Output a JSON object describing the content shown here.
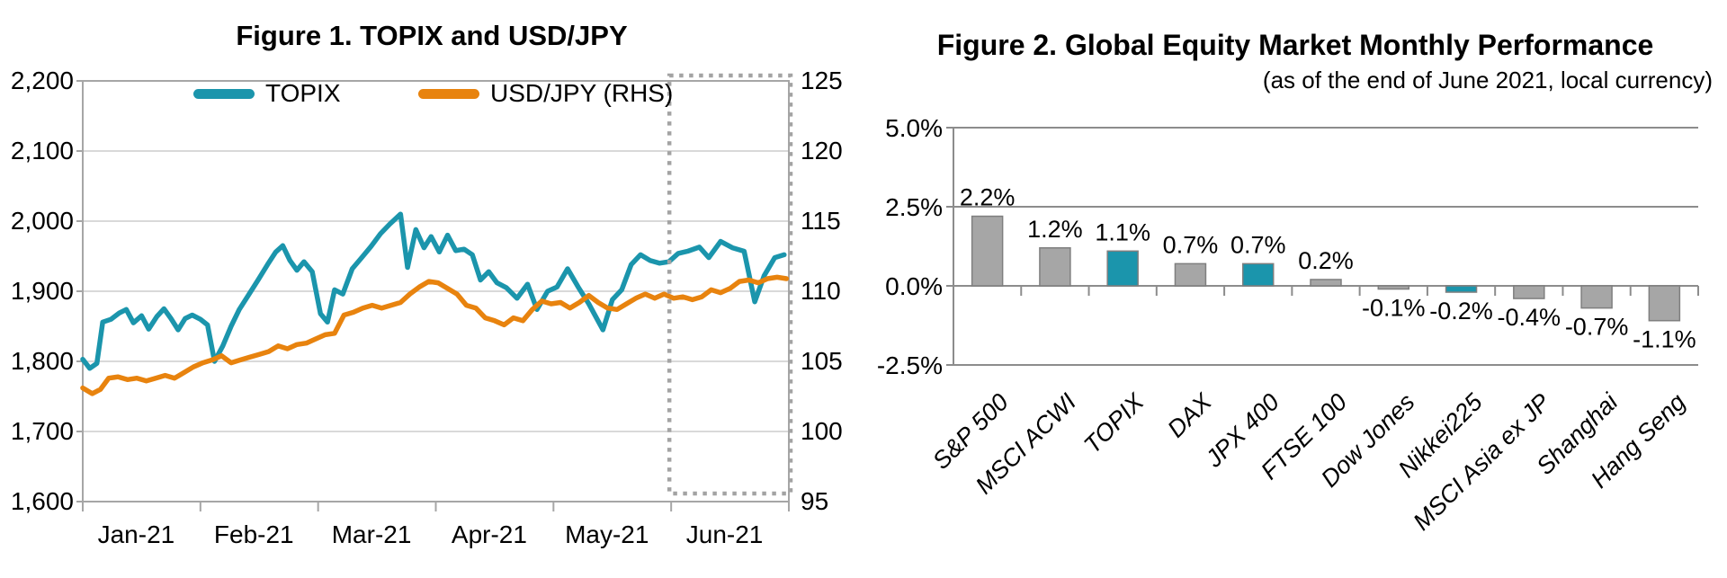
{
  "chart_data": [
    {
      "type": "line",
      "title": "Figure 1. TOPIX and USD/JPY",
      "x_tick_labels": [
        "Jan-21",
        "Feb-21",
        "Mar-21",
        "Apr-21",
        "May-21",
        "Jun-21"
      ],
      "x_unit": "months since Jan-21 start (0 to 6)",
      "left_axis": {
        "min": 1600,
        "max": 2200,
        "tick_labels": [
          "2,200",
          "2,100",
          "2,000",
          "1,900",
          "1,800",
          "1,700",
          "1,600"
        ]
      },
      "right_axis": {
        "min": 95,
        "max": 125,
        "tick_labels": [
          "125",
          "120",
          "115",
          "110",
          "105",
          "100",
          "95"
        ]
      },
      "grid": "horizontal",
      "legend_position": "top-inside",
      "annotation_box": {
        "meaning": "dotted highlight over June 2021",
        "x_from": 5.0,
        "x_to": 6.0
      },
      "series": [
        {
          "name": "TOPIX",
          "axis": "left",
          "color": "#1B95AC",
          "points": [
            [
              0,
              1803
            ],
            [
              0.06,
              1790
            ],
            [
              0.12,
              1797
            ],
            [
              0.17,
              1856
            ],
            [
              0.24,
              1860
            ],
            [
              0.31,
              1869
            ],
            [
              0.37,
              1874
            ],
            [
              0.43,
              1855
            ],
            [
              0.5,
              1865
            ],
            [
              0.56,
              1846
            ],
            [
              0.63,
              1864
            ],
            [
              0.69,
              1875
            ],
            [
              0.75,
              1861
            ],
            [
              0.81,
              1845
            ],
            [
              0.87,
              1861
            ],
            [
              0.93,
              1866
            ],
            [
              1,
              1860
            ],
            [
              1.06,
              1852
            ],
            [
              1.12,
              1800
            ],
            [
              1.19,
              1822
            ],
            [
              1.26,
              1850
            ],
            [
              1.33,
              1874
            ],
            [
              1.41,
              1895
            ],
            [
              1.49,
              1916
            ],
            [
              1.57,
              1938
            ],
            [
              1.64,
              1956
            ],
            [
              1.7,
              1965
            ],
            [
              1.76,
              1944
            ],
            [
              1.82,
              1930
            ],
            [
              1.88,
              1942
            ],
            [
              1.95,
              1928
            ],
            [
              2.02,
              1868
            ],
            [
              2.08,
              1856
            ],
            [
              2.14,
              1902
            ],
            [
              2.21,
              1896
            ],
            [
              2.29,
              1932
            ],
            [
              2.37,
              1948
            ],
            [
              2.45,
              1964
            ],
            [
              2.53,
              1982
            ],
            [
              2.61,
              1996
            ],
            [
              2.7,
              2010
            ],
            [
              2.76,
              1934
            ],
            [
              2.83,
              1988
            ],
            [
              2.9,
              1962
            ],
            [
              2.96,
              1978
            ],
            [
              3.03,
              1956
            ],
            [
              3.1,
              1980
            ],
            [
              3.17,
              1958
            ],
            [
              3.24,
              1960
            ],
            [
              3.31,
              1952
            ],
            [
              3.38,
              1916
            ],
            [
              3.45,
              1928
            ],
            [
              3.52,
              1912
            ],
            [
              3.6,
              1905
            ],
            [
              3.69,
              1890
            ],
            [
              3.78,
              1910
            ],
            [
              3.86,
              1874
            ],
            [
              3.95,
              1900
            ],
            [
              4.03,
              1906
            ],
            [
              4.12,
              1932
            ],
            [
              4.21,
              1906
            ],
            [
              4.3,
              1882
            ],
            [
              4.42,
              1845
            ],
            [
              4.5,
              1888
            ],
            [
              4.58,
              1902
            ],
            [
              4.66,
              1938
            ],
            [
              4.74,
              1952
            ],
            [
              4.82,
              1944
            ],
            [
              4.9,
              1940
            ],
            [
              4.98,
              1942
            ],
            [
              5.06,
              1954
            ],
            [
              5.14,
              1957
            ],
            [
              5.24,
              1963
            ],
            [
              5.32,
              1948
            ],
            [
              5.42,
              1971
            ],
            [
              5.52,
              1962
            ],
            [
              5.62,
              1957
            ],
            [
              5.71,
              1885
            ],
            [
              5.79,
              1922
            ],
            [
              5.88,
              1948
            ],
            [
              5.96,
              1952
            ]
          ]
        },
        {
          "name": "USD/JPY (RHS)",
          "axis": "right",
          "color": "#E8830E",
          "points": [
            [
              0,
              103.1
            ],
            [
              0.08,
              102.7
            ],
            [
              0.15,
              103.0
            ],
            [
              0.22,
              103.8
            ],
            [
              0.3,
              103.9
            ],
            [
              0.38,
              103.7
            ],
            [
              0.46,
              103.8
            ],
            [
              0.54,
              103.6
            ],
            [
              0.62,
              103.8
            ],
            [
              0.7,
              104.0
            ],
            [
              0.78,
              103.8
            ],
            [
              0.86,
              104.2
            ],
            [
              0.94,
              104.6
            ],
            [
              1.02,
              104.9
            ],
            [
              1.1,
              105.1
            ],
            [
              1.18,
              105.4
            ],
            [
              1.26,
              104.9
            ],
            [
              1.34,
              105.1
            ],
            [
              1.42,
              105.3
            ],
            [
              1.5,
              105.5
            ],
            [
              1.58,
              105.7
            ],
            [
              1.66,
              106.1
            ],
            [
              1.74,
              105.9
            ],
            [
              1.82,
              106.2
            ],
            [
              1.9,
              106.3
            ],
            [
              1.98,
              106.6
            ],
            [
              2.06,
              106.9
            ],
            [
              2.14,
              107.0
            ],
            [
              2.22,
              108.3
            ],
            [
              2.3,
              108.5
            ],
            [
              2.38,
              108.8
            ],
            [
              2.46,
              109.0
            ],
            [
              2.54,
              108.8
            ],
            [
              2.62,
              109.0
            ],
            [
              2.7,
              109.2
            ],
            [
              2.78,
              109.8
            ],
            [
              2.86,
              110.3
            ],
            [
              2.94,
              110.7
            ],
            [
              3.02,
              110.6
            ],
            [
              3.1,
              110.2
            ],
            [
              3.18,
              109.8
            ],
            [
              3.26,
              109.0
            ],
            [
              3.34,
              108.8
            ],
            [
              3.42,
              108.1
            ],
            [
              3.5,
              107.9
            ],
            [
              3.58,
              107.6
            ],
            [
              3.66,
              108.1
            ],
            [
              3.74,
              107.9
            ],
            [
              3.82,
              108.7
            ],
            [
              3.9,
              109.3
            ],
            [
              3.98,
              109.1
            ],
            [
              4.06,
              109.2
            ],
            [
              4.14,
              108.8
            ],
            [
              4.22,
              109.2
            ],
            [
              4.3,
              109.7
            ],
            [
              4.38,
              109.2
            ],
            [
              4.46,
              108.8
            ],
            [
              4.54,
              108.7
            ],
            [
              4.62,
              109.1
            ],
            [
              4.7,
              109.5
            ],
            [
              4.78,
              109.8
            ],
            [
              4.86,
              109.5
            ],
            [
              4.94,
              109.8
            ],
            [
              5.02,
              109.5
            ],
            [
              5.1,
              109.6
            ],
            [
              5.18,
              109.4
            ],
            [
              5.26,
              109.6
            ],
            [
              5.34,
              110.1
            ],
            [
              5.42,
              109.9
            ],
            [
              5.5,
              110.2
            ],
            [
              5.58,
              110.7
            ],
            [
              5.66,
              110.8
            ],
            [
              5.74,
              110.6
            ],
            [
              5.82,
              110.9
            ],
            [
              5.9,
              111.0
            ],
            [
              5.98,
              110.9
            ]
          ]
        }
      ]
    },
    {
      "type": "bar",
      "title": "Figure 2. Global Equity Market Monthly Performance",
      "subtitle": "(as of the end of June 2021, local currency)",
      "categories": [
        "S&P 500",
        "MSCI ACWI",
        "TOPIX",
        "DAX",
        "JPX 400",
        "FTSE 100",
        "Dow Jones",
        "Nikkei225",
        "MSCI Asia ex JP",
        "Shanghai",
        "Hang Seng"
      ],
      "values": [
        2.2,
        1.2,
        1.1,
        0.7,
        0.7,
        0.2,
        -0.1,
        -0.2,
        -0.4,
        -0.7,
        -1.1
      ],
      "value_labels": [
        "2.2%",
        "1.2%",
        "1.1%",
        "0.7%",
        "0.7%",
        "0.2%",
        "-0.1%",
        "-0.2%",
        "-0.4%",
        "-0.7%",
        "-1.1%"
      ],
      "highlighted_categories": [
        "TOPIX",
        "JPX 400",
        "Nikkei225"
      ],
      "ylim": [
        -2.5,
        5.0
      ],
      "y_ticks": [
        5.0,
        2.5,
        0.0,
        -2.5
      ],
      "y_tick_labels": [
        "5.0%",
        "2.5%",
        "0.0%",
        "-2.5%"
      ],
      "grid": "horizontal",
      "colors": {
        "default_bar": "#A6A6A6",
        "highlight_bar": "#1B95AC",
        "bar_border": "#7F7F7F",
        "axis": "#8C8C8C",
        "gridline_fig1": "#D9D9D9",
        "frame_fig1": "#A6A6A6",
        "highlight_box": "#A3A3A3"
      }
    }
  ]
}
